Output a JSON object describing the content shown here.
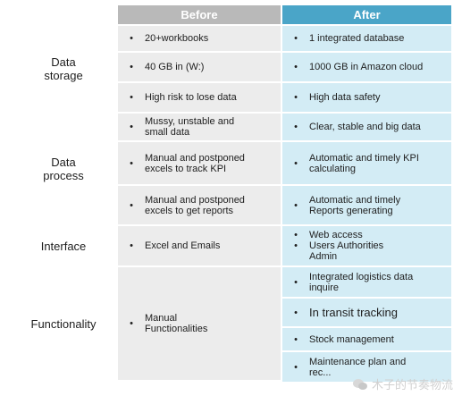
{
  "header": {
    "before": "Before",
    "after": "After"
  },
  "categories": {
    "data_storage": "Data storage",
    "data_process": "Data process",
    "interface": "Interface",
    "functionality": "Functionality"
  },
  "bullet": "•",
  "rows": {
    "ds1": {
      "before": "20+workbooks",
      "after": "1 integrated database"
    },
    "ds2": {
      "before": "40 GB in (W:)",
      "after": "1000 GB in Amazon cloud"
    },
    "ds3": {
      "before": "High risk to lose data",
      "after": "High data safety"
    },
    "dp1": {
      "before": "Mussy, unstable and small data",
      "after": "Clear, stable and big data"
    },
    "dp2": {
      "before": "Manual and postponed excels to track KPI",
      "after": "Automatic and timely KPI calculating"
    },
    "dp3": {
      "before": "Manual and postponed excels to get reports",
      "after": "Automatic and timely Reports generating"
    },
    "if1": {
      "before": "Excel and Emails",
      "after1": "Web access",
      "after2": "Users Authorities Admin"
    },
    "fn_before": "Manual Functionalities",
    "fn1": {
      "after": "Integrated logistics data inquire"
    },
    "fn2": {
      "after": "In transit tracking"
    },
    "fn3": {
      "after": "Stock management"
    },
    "fn4": {
      "after": "Maintenance plan and rec..."
    }
  },
  "watermark": "木子的节奏物流",
  "colors": {
    "before_header": "#b9b9b9",
    "after_header": "#4aa5c8",
    "before_cell": "#ececec",
    "after_cell": "#d3ecf5"
  }
}
